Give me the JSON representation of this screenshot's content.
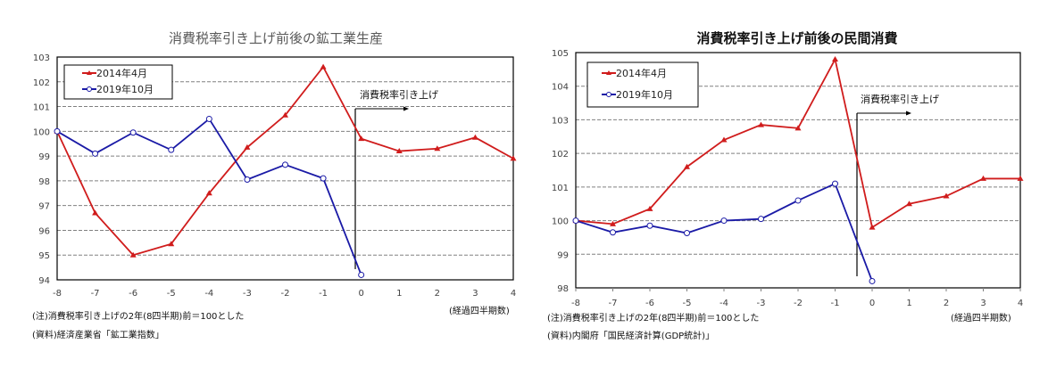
{
  "chart_data": [
    {
      "type": "line",
      "title": "消費税率引き上げ前後の鉱工業生産",
      "xlabel": "(経過四半期数)",
      "ylabel": "",
      "x": [
        -8,
        -7,
        -6,
        -5,
        -4,
        -3,
        -2,
        -1,
        0,
        1,
        2,
        3,
        4
      ],
      "xticks": [
        "-8",
        "-7",
        "-6",
        "-5",
        "-4",
        "-3",
        "-2",
        "-1",
        "0",
        "1",
        "2",
        "3",
        "4"
      ],
      "yticks": [
        "94",
        "95",
        "96",
        "97",
        "98",
        "99",
        "100",
        "101",
        "102",
        "103"
      ],
      "ylim": [
        94,
        103
      ],
      "xlim": [
        -8,
        4
      ],
      "grid": true,
      "legend_position": "top-left",
      "series": [
        {
          "name": "2014年4月",
          "color": "#d01c1c",
          "marker": "triangle",
          "values": [
            100,
            96.7,
            95.0,
            95.45,
            97.5,
            99.35,
            100.65,
            102.6,
            99.7,
            99.2,
            99.3,
            99.75,
            98.9
          ]
        },
        {
          "name": "2019年10月",
          "color": "#1a1aa6",
          "marker": "circle",
          "values": [
            100,
            99.1,
            99.95,
            99.25,
            100.5,
            98.05,
            98.65,
            98.1,
            94.2,
            null,
            null,
            null,
            null
          ]
        }
      ],
      "annotation": "消費税率引き上げ",
      "notes": [
        "(注)消費税率引き上げの2年(8四半期)前＝100とした",
        "(資料)経済産業省「鉱工業指数」"
      ]
    },
    {
      "type": "line",
      "title": "消費税率引き上げ前後の民間消費",
      "xlabel": "(経過四半期数)",
      "ylabel": "",
      "x": [
        -8,
        -7,
        -6,
        -5,
        -4,
        -3,
        -2,
        -1,
        0,
        1,
        2,
        3,
        4
      ],
      "xticks": [
        "-8",
        "-7",
        "-6",
        "-5",
        "-4",
        "-3",
        "-2",
        "-1",
        "0",
        "1",
        "2",
        "3",
        "4"
      ],
      "yticks": [
        "98",
        "99",
        "100",
        "101",
        "102",
        "103",
        "104",
        "105"
      ],
      "ylim": [
        98,
        105
      ],
      "xlim": [
        -8,
        4
      ],
      "grid": true,
      "legend_position": "top-left",
      "series": [
        {
          "name": "2014年4月",
          "color": "#d01c1c",
          "marker": "triangle",
          "values": [
            100,
            99.9,
            100.35,
            101.6,
            102.4,
            102.85,
            102.75,
            104.8,
            99.8,
            100.5,
            100.73,
            101.25,
            101.25
          ]
        },
        {
          "name": "2019年10月",
          "color": "#1a1aa6",
          "marker": "circle",
          "values": [
            100,
            99.65,
            99.85,
            99.63,
            100.0,
            100.05,
            100.6,
            101.1,
            98.2,
            null,
            null,
            null,
            null
          ]
        }
      ],
      "annotation": "消費税率引き上げ",
      "notes": [
        "(注)消費税率引き上げの2年(8四半期)前＝100とした",
        "(資料)内閣府「国民経済計算(GDP統計)」"
      ]
    }
  ]
}
